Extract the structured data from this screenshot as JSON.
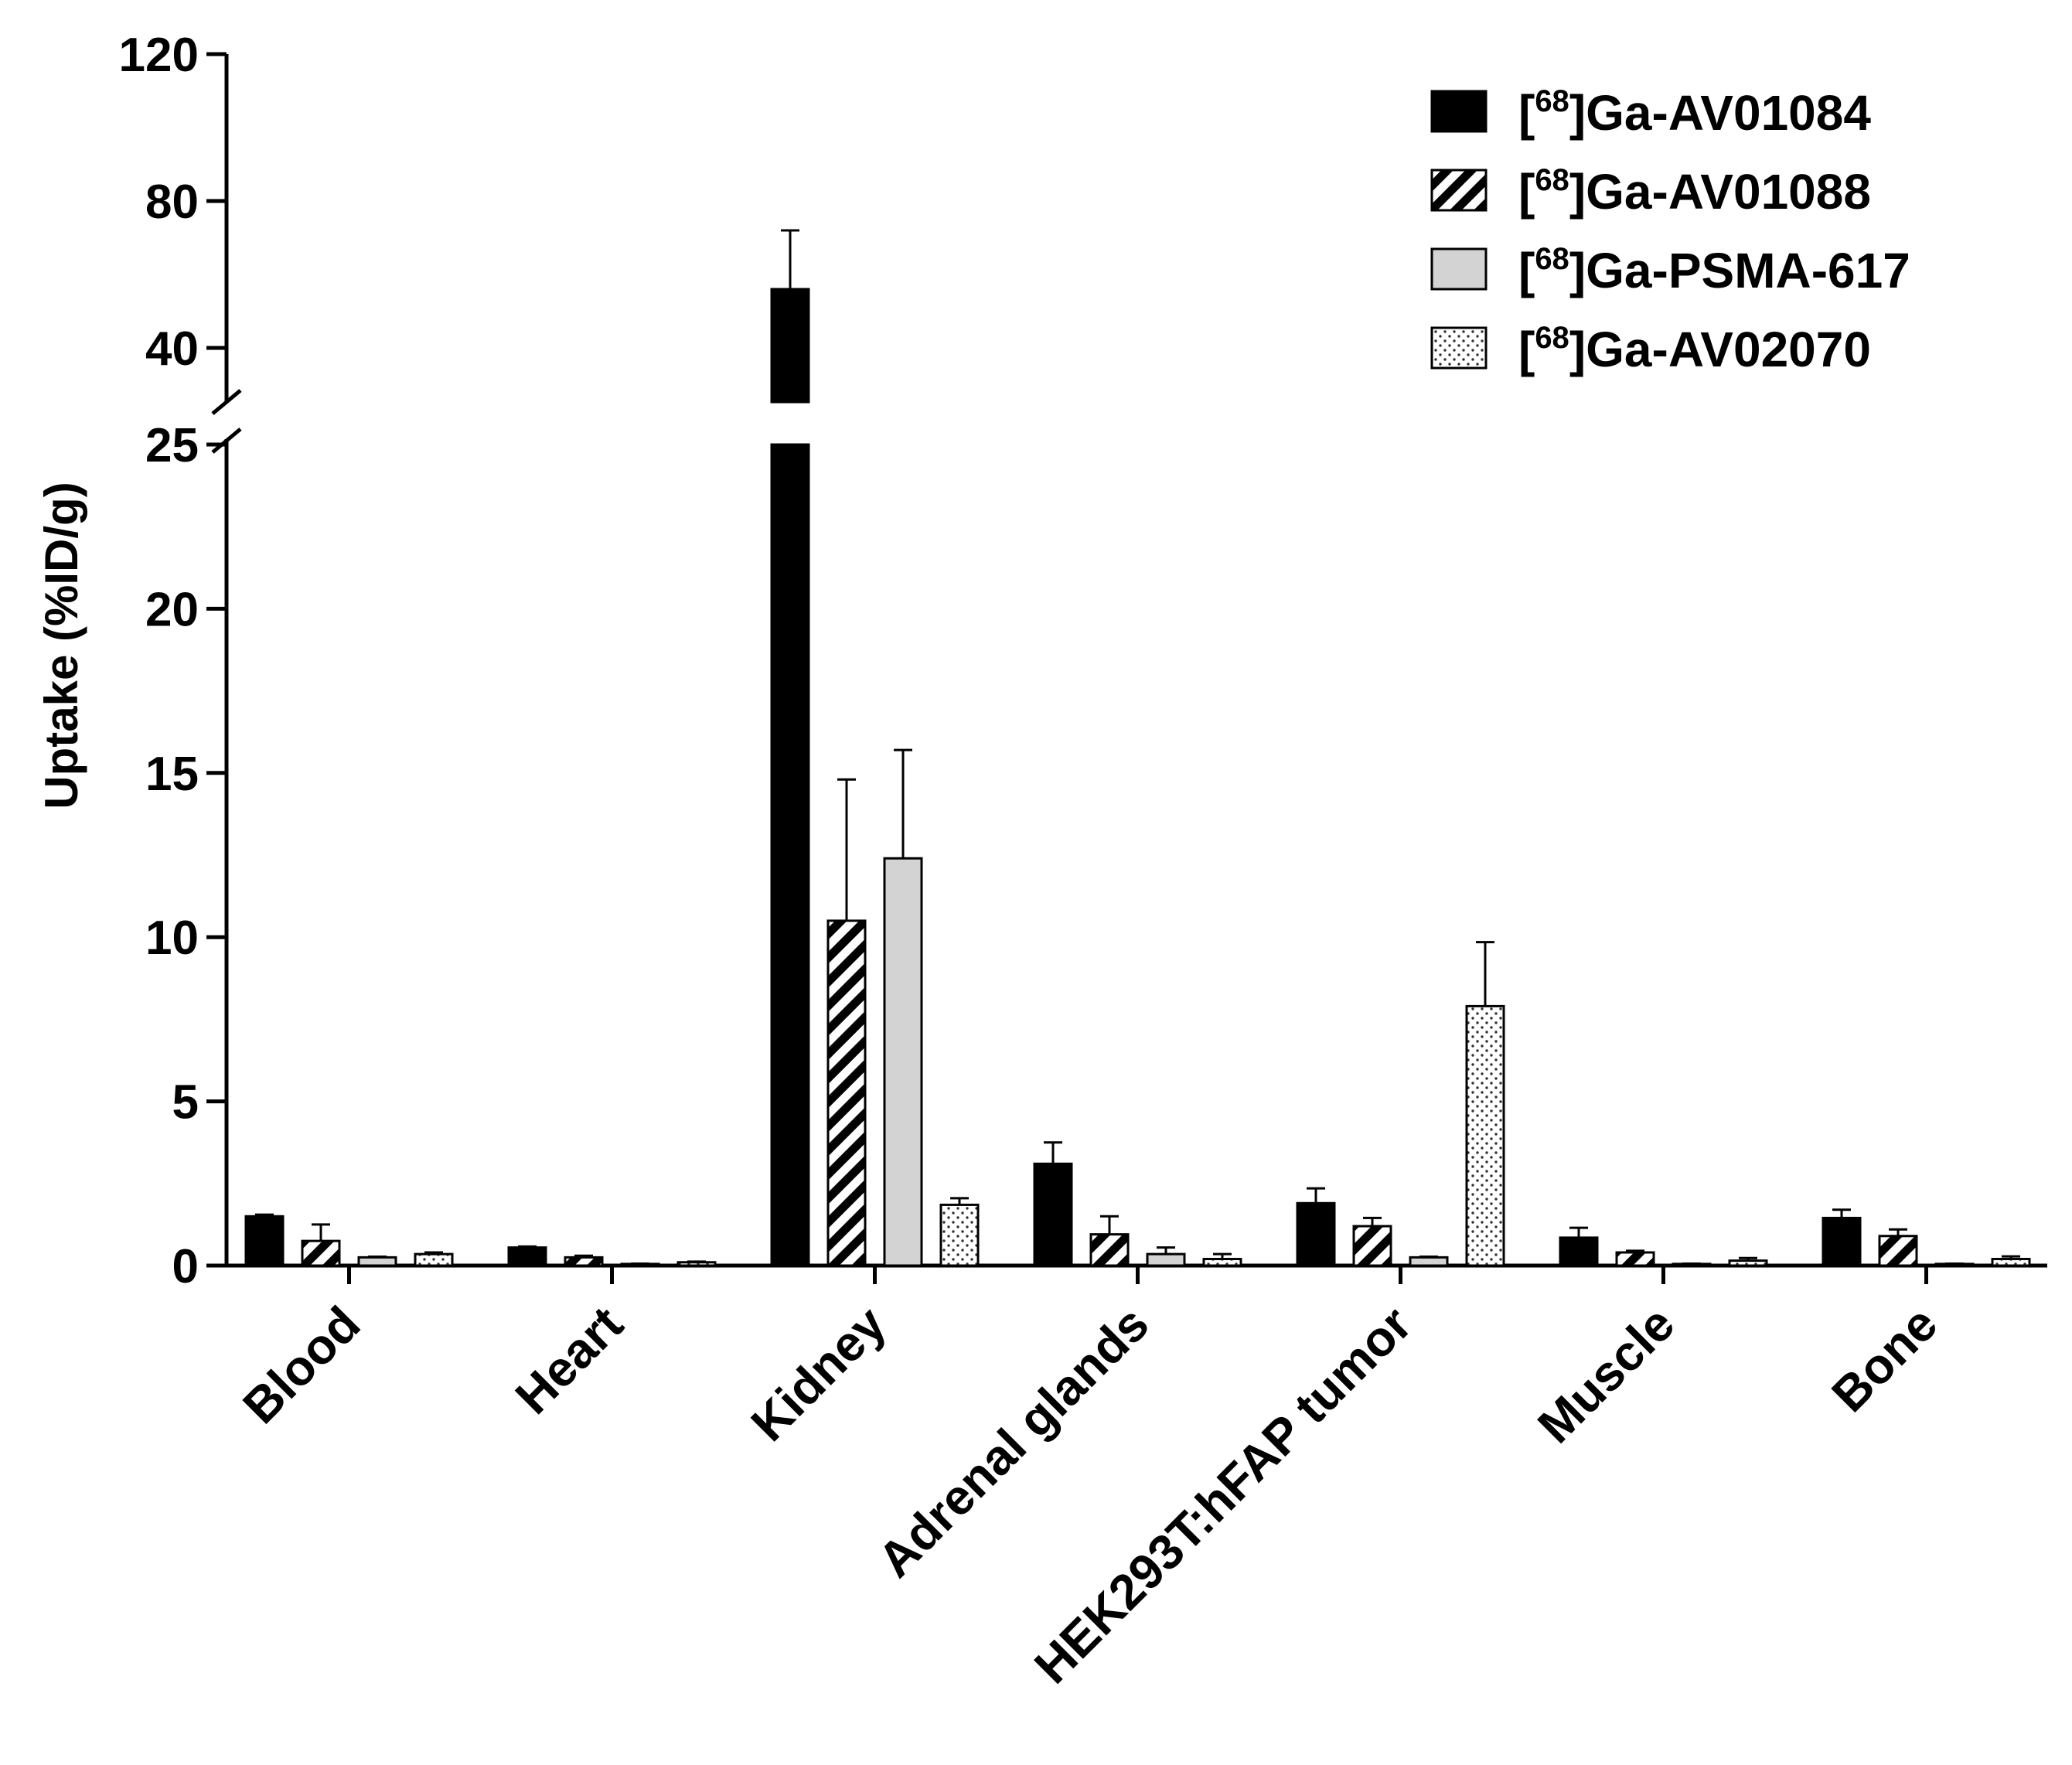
{
  "chart_data": {
    "type": "bar",
    "title": "",
    "xlabel": "",
    "ylabel": "Uptake (%ID/g)",
    "axis_break": {
      "lower_range": [
        0,
        25
      ],
      "upper_range": [
        25,
        120
      ]
    },
    "upper_ticks": [
      40,
      80,
      120
    ],
    "lower_ticks": [
      0,
      5,
      10,
      15,
      20,
      25
    ],
    "ylim": [
      0,
      120
    ],
    "grid": false,
    "legend_position": "top-right",
    "categories": [
      "Blood",
      "Heart",
      "Kidney",
      "Adrenal glands",
      "HEK293T:hFAP tumor",
      "Muscle",
      "Bone"
    ],
    "series": [
      {
        "name": "Ga-AV01084",
        "isotope": "68",
        "pattern": "solid-black",
        "values": [
          1.5,
          0.55,
          56.0,
          3.1,
          1.9,
          0.85,
          1.45
        ],
        "errors": [
          0.05,
          0.03,
          16.0,
          0.65,
          0.45,
          0.3,
          0.25
        ]
      },
      {
        "name": "Ga-AV01088",
        "isotope": "68",
        "pattern": "diagonal-hatch",
        "values": [
          0.75,
          0.25,
          10.5,
          0.95,
          1.2,
          0.4,
          0.9
        ],
        "errors": [
          0.5,
          0.05,
          4.3,
          0.55,
          0.25,
          0.05,
          0.2
        ]
      },
      {
        "name": "Ga-PSMA-617",
        "isotope": "68",
        "pattern": "solid-lightgray",
        "values": [
          0.25,
          0.05,
          12.4,
          0.35,
          0.25,
          0.05,
          0.05
        ],
        "errors": [
          0.02,
          0.01,
          3.3,
          0.2,
          0.02,
          0.01,
          0.01
        ]
      },
      {
        "name": "Ga-AV02070",
        "isotope": "68",
        "pattern": "dotted",
        "values": [
          0.35,
          0.1,
          1.85,
          0.2,
          7.9,
          0.15,
          0.2
        ],
        "errors": [
          0.05,
          0.02,
          0.2,
          0.15,
          1.95,
          0.08,
          0.08
        ]
      }
    ]
  }
}
